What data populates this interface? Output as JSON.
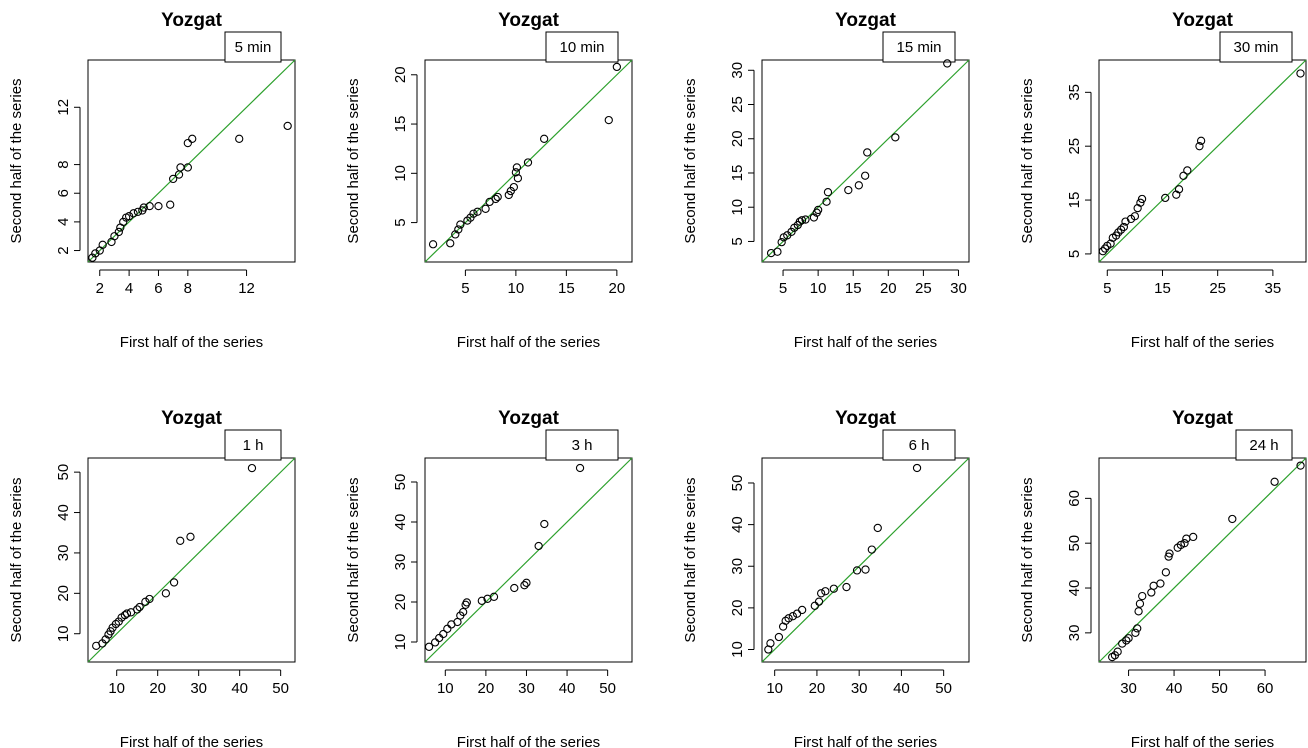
{
  "figure": {
    "background": "#ffffff",
    "reference_line_color": "#2ca02c",
    "point_color": "#000000"
  },
  "chart_data": [
    {
      "type": "scatter",
      "title": "Yozgat",
      "label": "5 min",
      "xlabel": "First half of the series",
      "ylabel": "Second half of the series",
      "xlim": [
        1.2,
        15.3
      ],
      "ylim": [
        1.2,
        15.3
      ],
      "xticks": [
        "2",
        "4",
        "6",
        "8",
        "12"
      ],
      "yticks": [
        "2",
        "4",
        "6",
        "8",
        "12"
      ],
      "reference_line": "y = x",
      "points": [
        [
          1.5,
          1.5
        ],
        [
          1.7,
          1.8
        ],
        [
          2.0,
          2.0
        ],
        [
          2.2,
          2.4
        ],
        [
          2.8,
          2.6
        ],
        [
          3.0,
          3.0
        ],
        [
          3.3,
          3.3
        ],
        [
          3.4,
          3.6
        ],
        [
          3.6,
          4.0
        ],
        [
          3.8,
          4.3
        ],
        [
          4.0,
          4.4
        ],
        [
          4.3,
          4.6
        ],
        [
          4.6,
          4.7
        ],
        [
          4.9,
          4.8
        ],
        [
          5.0,
          5.0
        ],
        [
          5.4,
          5.1
        ],
        [
          6.0,
          5.1
        ],
        [
          6.8,
          5.2
        ],
        [
          7.0,
          7.0
        ],
        [
          7.4,
          7.3
        ],
        [
          7.5,
          7.8
        ],
        [
          8.0,
          7.8
        ],
        [
          8.0,
          9.5
        ],
        [
          8.3,
          9.8
        ],
        [
          11.5,
          9.8
        ],
        [
          14.8,
          10.7
        ]
      ]
    },
    {
      "type": "scatter",
      "title": "Yozgat",
      "label": "10 min",
      "xlabel": "First half of the series",
      "ylabel": "Second half of the series",
      "xlim": [
        1.0,
        21.5
      ],
      "ylim": [
        1.0,
        21.5
      ],
      "xticks": [
        "5",
        "10",
        "15",
        "20"
      ],
      "yticks": [
        "5",
        "10",
        "15",
        "20"
      ],
      "reference_line": "y = x",
      "points": [
        [
          1.8,
          2.8
        ],
        [
          3.5,
          2.9
        ],
        [
          4.0,
          3.8
        ],
        [
          4.3,
          4.3
        ],
        [
          4.5,
          4.8
        ],
        [
          5.2,
          5.2
        ],
        [
          5.5,
          5.5
        ],
        [
          5.8,
          5.9
        ],
        [
          6.2,
          6.1
        ],
        [
          7.0,
          6.4
        ],
        [
          7.4,
          7.1
        ],
        [
          8.0,
          7.4
        ],
        [
          8.2,
          7.6
        ],
        [
          9.3,
          7.8
        ],
        [
          9.5,
          8.2
        ],
        [
          9.8,
          8.6
        ],
        [
          10.2,
          9.5
        ],
        [
          10.0,
          10.1
        ],
        [
          10.1,
          10.6
        ],
        [
          11.2,
          11.1
        ],
        [
          12.8,
          13.5
        ],
        [
          19.2,
          15.4
        ],
        [
          20.0,
          20.8
        ]
      ]
    },
    {
      "type": "scatter",
      "title": "Yozgat",
      "label": "15 min",
      "xlabel": "First half of the series",
      "ylabel": "Second half of the series",
      "xlim": [
        2.0,
        31.5
      ],
      "ylim": [
        2.0,
        31.5
      ],
      "xticks": [
        "5",
        "10",
        "15",
        "20",
        "25",
        "30"
      ],
      "yticks": [
        "5",
        "10",
        "15",
        "20",
        "25",
        "30"
      ],
      "reference_line": "y = x",
      "points": [
        [
          3.3,
          3.3
        ],
        [
          4.2,
          3.5
        ],
        [
          4.8,
          4.9
        ],
        [
          5.1,
          5.6
        ],
        [
          5.6,
          5.9
        ],
        [
          6.2,
          6.4
        ],
        [
          6.6,
          7.0
        ],
        [
          7.1,
          7.4
        ],
        [
          7.4,
          7.9
        ],
        [
          7.7,
          8.1
        ],
        [
          8.2,
          8.2
        ],
        [
          9.4,
          8.5
        ],
        [
          9.8,
          9.2
        ],
        [
          10.0,
          9.6
        ],
        [
          11.2,
          10.8
        ],
        [
          11.4,
          12.2
        ],
        [
          14.3,
          12.5
        ],
        [
          15.8,
          13.2
        ],
        [
          16.7,
          14.6
        ],
        [
          17.0,
          18.0
        ],
        [
          21.0,
          20.2
        ],
        [
          28.4,
          31.0
        ]
      ]
    },
    {
      "type": "scatter",
      "title": "Yozgat",
      "label": "30 min",
      "xlabel": "First half of the series",
      "ylabel": "Second half of the series",
      "xlim": [
        3.5,
        41.0
      ],
      "ylim": [
        3.5,
        41.0
      ],
      "xticks": [
        "5",
        "15",
        "25",
        "35"
      ],
      "yticks": [
        "5",
        "15",
        "25",
        "35"
      ],
      "reference_line": "y = x",
      "points": [
        [
          4.2,
          5.5
        ],
        [
          4.6,
          6.0
        ],
        [
          5.0,
          6.5
        ],
        [
          5.6,
          6.9
        ],
        [
          6.0,
          8.0
        ],
        [
          6.6,
          8.4
        ],
        [
          7.0,
          9.0
        ],
        [
          7.5,
          9.5
        ],
        [
          8.0,
          10.0
        ],
        [
          8.3,
          11.0
        ],
        [
          9.3,
          11.5
        ],
        [
          10.0,
          12.0
        ],
        [
          10.5,
          13.5
        ],
        [
          11.0,
          14.5
        ],
        [
          11.3,
          15.2
        ],
        [
          15.5,
          15.4
        ],
        [
          17.5,
          16.0
        ],
        [
          18.0,
          17.0
        ],
        [
          18.8,
          19.5
        ],
        [
          19.5,
          20.5
        ],
        [
          21.7,
          25.0
        ],
        [
          22.0,
          26.0
        ],
        [
          40.0,
          38.5
        ]
      ]
    },
    {
      "type": "scatter",
      "title": "Yozgat",
      "label": "1 h",
      "xlabel": "First half of the series",
      "ylabel": "Second half of the series",
      "xlim": [
        3.0,
        53.5
      ],
      "ylim": [
        3.0,
        53.5
      ],
      "xticks": [
        "10",
        "20",
        "30",
        "40",
        "50"
      ],
      "yticks": [
        "10",
        "20",
        "30",
        "40",
        "50"
      ],
      "reference_line": "y = x",
      "points": [
        [
          5.0,
          7.0
        ],
        [
          6.5,
          7.6
        ],
        [
          7.3,
          8.6
        ],
        [
          8.0,
          9.8
        ],
        [
          8.5,
          10.6
        ],
        [
          9.0,
          11.5
        ],
        [
          9.8,
          12.4
        ],
        [
          10.5,
          13.0
        ],
        [
          11.2,
          14.0
        ],
        [
          12.0,
          14.6
        ],
        [
          12.5,
          15.0
        ],
        [
          13.5,
          15.3
        ],
        [
          15.0,
          16.0
        ],
        [
          15.6,
          16.6
        ],
        [
          17.0,
          17.9
        ],
        [
          18.0,
          18.6
        ],
        [
          22.0,
          20.0
        ],
        [
          24.0,
          22.7
        ],
        [
          25.5,
          33.0
        ],
        [
          28.0,
          34.0
        ],
        [
          43.0,
          51.0
        ]
      ]
    },
    {
      "type": "scatter",
      "title": "Yozgat",
      "label": "3 h",
      "xlabel": "First half of the series",
      "ylabel": "Second half of the series",
      "xlim": [
        5.0,
        56.0
      ],
      "ylim": [
        5.0,
        56.0
      ],
      "xticks": [
        "10",
        "20",
        "30",
        "40",
        "50"
      ],
      "yticks": [
        "10",
        "20",
        "30",
        "40",
        "50"
      ],
      "reference_line": "y = x",
      "points": [
        [
          6.0,
          8.8
        ],
        [
          7.5,
          9.9
        ],
        [
          8.5,
          11.0
        ],
        [
          9.5,
          12.0
        ],
        [
          10.5,
          13.3
        ],
        [
          11.5,
          14.4
        ],
        [
          13.0,
          15.0
        ],
        [
          13.7,
          16.6
        ],
        [
          14.4,
          17.5
        ],
        [
          15.0,
          19.3
        ],
        [
          15.3,
          19.9
        ],
        [
          19.0,
          20.3
        ],
        [
          20.4,
          20.8
        ],
        [
          22.0,
          21.3
        ],
        [
          27.0,
          23.5
        ],
        [
          29.5,
          24.2
        ],
        [
          30.0,
          24.8
        ],
        [
          33.0,
          34.0
        ],
        [
          34.4,
          39.5
        ],
        [
          43.2,
          53.5
        ]
      ]
    },
    {
      "type": "scatter",
      "title": "Yozgat",
      "label": "6 h",
      "xlabel": "First half of the series",
      "ylabel": "Second half of the series",
      "xlim": [
        7.0,
        56.0
      ],
      "ylim": [
        7.0,
        56.0
      ],
      "xticks": [
        "10",
        "20",
        "30",
        "40",
        "50"
      ],
      "yticks": [
        "10",
        "20",
        "30",
        "40",
        "50"
      ],
      "reference_line": "y = x",
      "points": [
        [
          8.5,
          10.0
        ],
        [
          9.0,
          11.5
        ],
        [
          11.0,
          13.0
        ],
        [
          12.0,
          15.5
        ],
        [
          12.6,
          16.9
        ],
        [
          13.3,
          17.5
        ],
        [
          14.3,
          18.0
        ],
        [
          15.3,
          18.6
        ],
        [
          16.5,
          19.5
        ],
        [
          19.5,
          20.5
        ],
        [
          20.5,
          21.5
        ],
        [
          21.0,
          23.5
        ],
        [
          22.0,
          24.0
        ],
        [
          24.0,
          24.6
        ],
        [
          27.0,
          25.0
        ],
        [
          29.5,
          29.0
        ],
        [
          31.5,
          29.2
        ],
        [
          33.0,
          34.0
        ],
        [
          34.4,
          39.2
        ],
        [
          43.7,
          53.6
        ]
      ]
    },
    {
      "type": "scatter",
      "title": "Yozgat",
      "label": "24 h",
      "xlabel": "First half of the series",
      "ylabel": "Second half of the series",
      "xlim": [
        23.5,
        69.0
      ],
      "ylim": [
        23.5,
        69.0
      ],
      "xticks": [
        "30",
        "40",
        "50",
        "60"
      ],
      "yticks": [
        "30",
        "40",
        "50",
        "60"
      ],
      "reference_line": "y = x",
      "points": [
        [
          26.4,
          24.6
        ],
        [
          27.0,
          25.0
        ],
        [
          27.6,
          25.8
        ],
        [
          28.6,
          27.6
        ],
        [
          29.5,
          28.3
        ],
        [
          30.0,
          28.8
        ],
        [
          31.5,
          30.0
        ],
        [
          31.9,
          31.0
        ],
        [
          32.2,
          34.8
        ],
        [
          32.5,
          36.5
        ],
        [
          33.0,
          38.2
        ],
        [
          35.0,
          39.0
        ],
        [
          35.5,
          40.5
        ],
        [
          37.0,
          41.0
        ],
        [
          38.2,
          43.5
        ],
        [
          38.8,
          47.0
        ],
        [
          39.0,
          47.7
        ],
        [
          40.8,
          49.0
        ],
        [
          41.5,
          49.6
        ],
        [
          42.3,
          50.0
        ],
        [
          42.7,
          51.0
        ],
        [
          44.2,
          51.4
        ],
        [
          52.8,
          55.4
        ],
        [
          62.1,
          63.7
        ],
        [
          67.8,
          67.3
        ]
      ]
    }
  ]
}
